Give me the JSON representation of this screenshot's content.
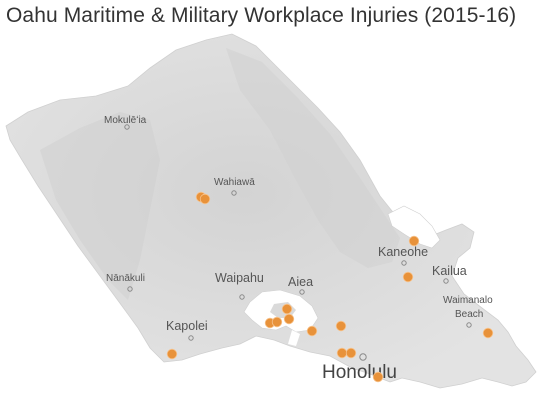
{
  "title": "Oahu Maritime & Military Workplace Injuries (2015-16)",
  "colors": {
    "land": "#dcdcdc",
    "land_shadow": "#cbcbcb",
    "water": "#ffffff",
    "marker": "#e8923a",
    "label": "#555555"
  },
  "places": {
    "mokuleia": "Mokulēʻia",
    "wahiawa": "Wahiawā",
    "kaneohe": "Kaneohe",
    "kailua": "Kailua",
    "nanakuli": "Nānākuli",
    "waipahu": "Waipahu",
    "aiea": "Aiea",
    "waimanalo_beach_line1": "Waimanalo",
    "waimanalo_beach_line2": "Beach",
    "kapolei": "Kapolei",
    "honolulu": "Honolulu"
  },
  "incident_markers_count": 19
}
